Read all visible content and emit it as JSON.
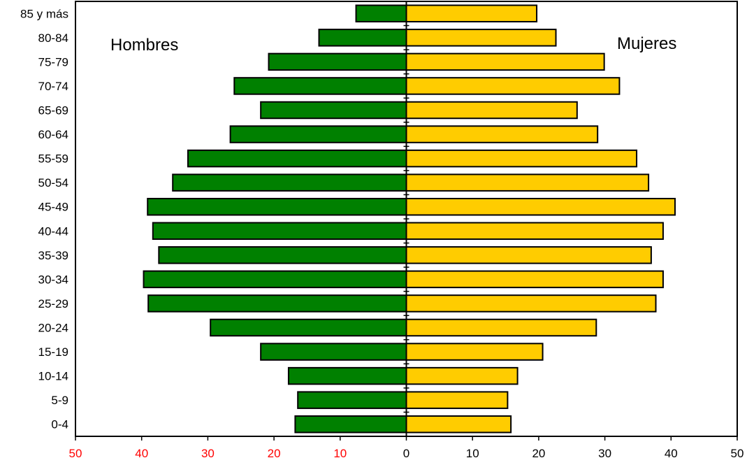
{
  "chart_data": {
    "type": "bar",
    "orientation": "horizontal",
    "layout": "population-pyramid",
    "categories": [
      "0-4",
      "5-9",
      "10-14",
      "15-19",
      "20-24",
      "25-29",
      "30-34",
      "35-39",
      "40-44",
      "45-49",
      "50-54",
      "55-59",
      "60-64",
      "65-69",
      "70-74",
      "75-79",
      "80-84",
      "85 y más"
    ],
    "series": [
      {
        "name": "Hombres",
        "side": "left",
        "color": "#008000",
        "values": [
          16.8,
          16.4,
          17.8,
          22.0,
          29.6,
          39.0,
          39.7,
          37.4,
          38.3,
          39.1,
          35.3,
          33.0,
          26.6,
          22.0,
          26.0,
          20.8,
          13.2,
          7.6
        ]
      },
      {
        "name": "Mujeres",
        "side": "right",
        "color": "#ffcc00",
        "values": [
          15.8,
          15.3,
          16.8,
          20.6,
          28.7,
          37.7,
          38.8,
          37.0,
          38.8,
          40.6,
          36.6,
          34.8,
          28.9,
          25.8,
          32.2,
          29.9,
          22.6,
          19.7
        ]
      }
    ],
    "xaxis": {
      "ticks": [
        -50,
        -40,
        -30,
        -20,
        -10,
        0,
        10,
        20,
        30,
        40,
        50
      ],
      "tick_labels": [
        "50",
        "40",
        "30",
        "20",
        "10",
        "0",
        "10",
        "20",
        "30",
        "40",
        "50"
      ],
      "negative_label_color": "#ff0000",
      "positive_label_color": "#000000"
    },
    "xlim": [
      -50,
      50
    ],
    "title": "",
    "xlabel": "",
    "ylabel": "",
    "grid": false,
    "legend": "none"
  }
}
